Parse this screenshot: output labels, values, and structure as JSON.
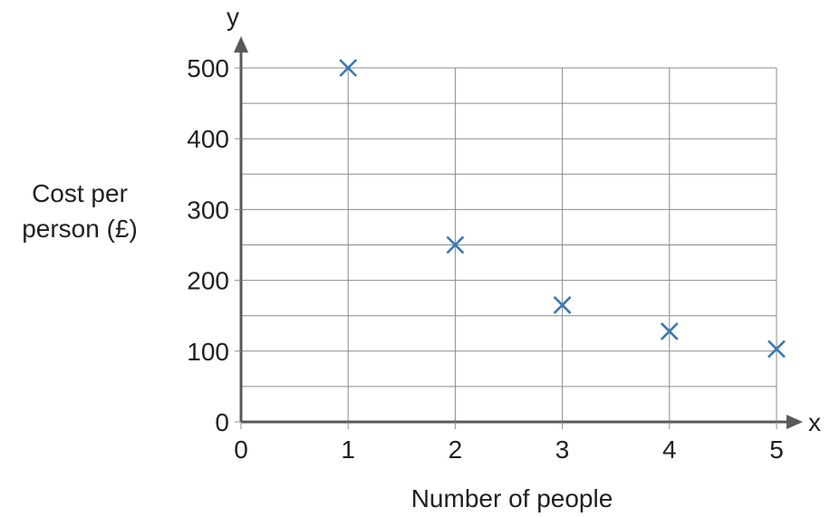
{
  "chart_data": {
    "type": "scatter",
    "title": "",
    "xlabel": "Number of people",
    "ylabel_lines": [
      "Cost per",
      "person (£)"
    ],
    "x_axis_letter": "x",
    "y_axis_letter": "y",
    "xlim": [
      0,
      5
    ],
    "ylim": [
      0,
      500
    ],
    "x_ticks": [
      0,
      1,
      2,
      3,
      4,
      5
    ],
    "y_ticks": [
      0,
      100,
      200,
      300,
      400,
      500
    ],
    "x_tick_labels": [
      "0",
      "1",
      "2",
      "3",
      "4",
      "5"
    ],
    "y_tick_labels": [
      "0",
      "100",
      "200",
      "300",
      "400",
      "500"
    ],
    "grid": true,
    "grid_minor_y_step": 50,
    "legend": "none",
    "marker": "x",
    "marker_color": "#3a78b5",
    "axis_color": "#595959",
    "grid_color": "#8c8c8c",
    "series": [
      {
        "points": [
          {
            "x": 1,
            "y": 500
          },
          {
            "x": 2,
            "y": 250
          },
          {
            "x": 3,
            "y": 165
          },
          {
            "x": 4,
            "y": 128
          },
          {
            "x": 5,
            "y": 103
          }
        ]
      }
    ]
  }
}
